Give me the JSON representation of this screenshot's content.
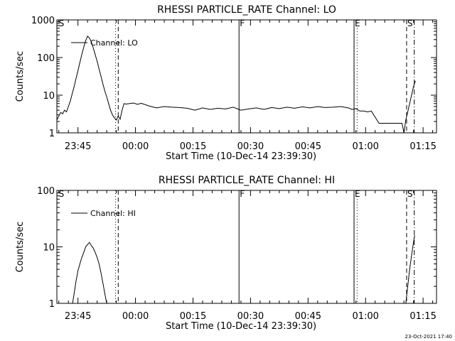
{
  "footer_timestamp": "23-Oct-2021 17:40",
  "chart_data": [
    {
      "type": "line",
      "title": "RHESSI PARTICLE_RATE Channel: LO",
      "xlabel": "Start Time (10-Dec-14 23:39:30)",
      "ylabel": "Counts/sec",
      "y_scale": "log",
      "ylim": [
        1,
        1000
      ],
      "xlim_minutes": [
        0,
        99
      ],
      "x_ticks": [
        {
          "t": 5.5,
          "label": "23:45"
        },
        {
          "t": 20.5,
          "label": "00:00"
        },
        {
          "t": 35.5,
          "label": "00:15"
        },
        {
          "t": 50.5,
          "label": "00:30"
        },
        {
          "t": 65.5,
          "label": "00:45"
        },
        {
          "t": 80.5,
          "label": "01:00"
        },
        {
          "t": 95.5,
          "label": "01:15"
        }
      ],
      "y_ticks": [
        {
          "v": 1,
          "label": "1"
        },
        {
          "v": 10,
          "label": "10"
        },
        {
          "v": 100,
          "label": "100"
        },
        {
          "v": 1000,
          "label": "1000"
        }
      ],
      "markers": [
        {
          "label": "S",
          "t": 0.3,
          "style": "none"
        },
        {
          "label": "",
          "t": 15.3,
          "style": "dotted"
        },
        {
          "label": "",
          "t": 16.0,
          "style": "dashed"
        },
        {
          "label": "F",
          "t": 47.5,
          "style": "solid"
        },
        {
          "label": "E",
          "t": 77.5,
          "style": "solid"
        },
        {
          "label": "",
          "t": 78.3,
          "style": "dotted"
        },
        {
          "label": "S",
          "t": 91.2,
          "style": "dashed"
        },
        {
          "label": "",
          "t": 93.2,
          "style": "dashdot"
        }
      ],
      "legend": {
        "label": "Channel: LO",
        "position": "top-left"
      },
      "series": [
        {
          "name": "Channel: LO",
          "x": [
            0,
            0.5,
            1,
            1.5,
            2,
            2.5,
            3,
            3.5,
            4,
            4.5,
            5,
            5.5,
            6,
            6.5,
            7,
            7.5,
            8,
            8.5,
            9,
            9.5,
            10,
            10.5,
            11,
            11.5,
            12,
            12.5,
            13,
            13.5,
            14,
            14.5,
            15,
            15.5,
            16,
            16.5,
            17,
            17.5,
            18,
            19,
            20,
            21,
            22,
            24,
            26,
            28,
            30,
            32,
            34,
            36,
            38,
            40,
            42,
            44,
            46,
            48,
            50,
            52,
            54,
            56,
            58,
            60,
            62,
            64,
            66,
            68,
            70,
            72,
            74,
            76,
            77,
            78,
            79,
            80,
            81,
            82,
            83,
            84,
            86,
            88,
            90,
            90.5,
            91,
            91.5,
            92,
            92.5,
            93,
            93.5
          ],
          "y": [
            2.2,
            2.8,
            3.5,
            3.2,
            4.0,
            3.6,
            5.0,
            7.0,
            11,
            17,
            28,
            45,
            75,
            120,
            190,
            280,
            370,
            330,
            260,
            180,
            120,
            80,
            50,
            32,
            20,
            13,
            9,
            6,
            4,
            3,
            2.5,
            2.2,
            2.8,
            2.3,
            4.0,
            6.0,
            5.8,
            6.0,
            6.2,
            5.7,
            6.1,
            5.2,
            4.6,
            5.0,
            4.8,
            4.7,
            4.5,
            4.0,
            4.6,
            4.2,
            4.5,
            4.3,
            4.8,
            4.0,
            4.3,
            4.6,
            4.2,
            4.7,
            4.4,
            4.8,
            4.5,
            4.9,
            4.6,
            5.0,
            4.7,
            4.8,
            5.0,
            4.6,
            4.2,
            4.4,
            3.8,
            3.8,
            3.6,
            3.8,
            2.6,
            1.8,
            1.8,
            1.8,
            1.8,
            1.0,
            2.2,
            3.6,
            6.0,
            10,
            17,
            24
          ]
        }
      ]
    },
    {
      "type": "line",
      "title": "RHESSI PARTICLE_RATE Channel: HI",
      "xlabel": "Start Time (10-Dec-14 23:39:30)",
      "ylabel": "Counts/sec",
      "y_scale": "log",
      "ylim": [
        1,
        100
      ],
      "xlim_minutes": [
        0,
        99
      ],
      "x_ticks": [
        {
          "t": 5.5,
          "label": "23:45"
        },
        {
          "t": 20.5,
          "label": "00:00"
        },
        {
          "t": 35.5,
          "label": "00:15"
        },
        {
          "t": 50.5,
          "label": "00:30"
        },
        {
          "t": 65.5,
          "label": "00:45"
        },
        {
          "t": 80.5,
          "label": "01:00"
        },
        {
          "t": 95.5,
          "label": "01:15"
        }
      ],
      "y_ticks": [
        {
          "v": 1,
          "label": "1"
        },
        {
          "v": 10,
          "label": "10"
        },
        {
          "v": 100,
          "label": "100"
        }
      ],
      "markers": [
        {
          "label": "S",
          "t": 0.3,
          "style": "none"
        },
        {
          "label": "",
          "t": 15.3,
          "style": "dotted"
        },
        {
          "label": "",
          "t": 16.0,
          "style": "dashed"
        },
        {
          "label": "F",
          "t": 47.5,
          "style": "solid"
        },
        {
          "label": "E",
          "t": 77.5,
          "style": "solid"
        },
        {
          "label": "",
          "t": 78.3,
          "style": "dotted"
        },
        {
          "label": "S",
          "t": 91.2,
          "style": "dashed"
        },
        {
          "label": "",
          "t": 93.2,
          "style": "dashdot"
        }
      ],
      "legend": {
        "label": "Channel: HI",
        "position": "top-left"
      },
      "series": [
        {
          "name": "Channel: HI",
          "x": [
            4.1,
            4.5,
            5,
            5.5,
            6,
            6.5,
            7,
            7.5,
            8,
            8.5,
            9,
            9.5,
            10,
            10.5,
            11,
            11.5,
            12,
            12.5,
            13
          ],
          "y": [
            1.0,
            1.5,
            2.5,
            3.8,
            5.0,
            6.5,
            8.0,
            10.0,
            11.0,
            12.0,
            10.5,
            9.5,
            8.0,
            6.5,
            5.0,
            3.5,
            2.3,
            1.5,
            1.0
          ]
        },
        {
          "name": "Channel: HI",
          "x": [
            91.0,
            91.5,
            92,
            92.5,
            93,
            93.3
          ],
          "y": [
            1.0,
            2.0,
            4.0,
            7.0,
            12.0,
            16.0
          ]
        }
      ]
    }
  ]
}
